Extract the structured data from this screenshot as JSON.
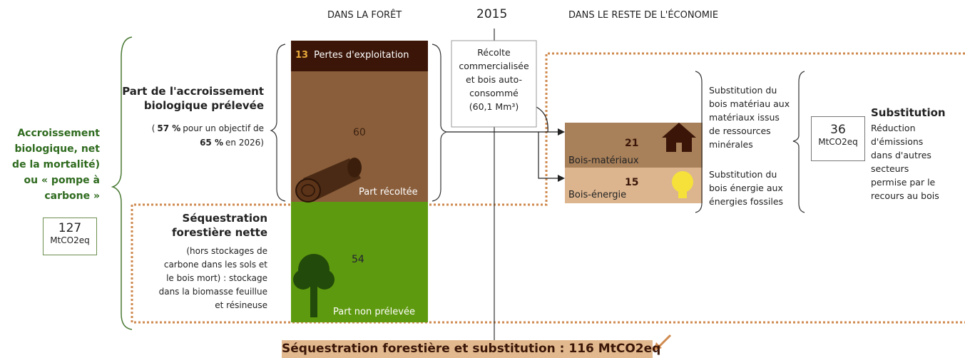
{
  "header": {
    "forest": "DANS LA FORÊT",
    "year": "2015",
    "economy": "DANS LE RESTE DE L'ÉCONOMIE"
  },
  "carbon_pump": {
    "label": [
      "Accroissement",
      "biologique, net",
      "de la mortalité)",
      "ou « pompe à",
      "carbone »"
    ],
    "value": "127",
    "unit": "MtCO2eq"
  },
  "harvested_share": {
    "title": [
      "Part de l'accroissement",
      "biologique prélevée"
    ],
    "note": [
      [
        "(",
        "57 %",
        "pour un objectif de"
      ],
      [
        "65 %",
        "en 2026)"
      ]
    ]
  },
  "column": {
    "losses": {
      "value": "13",
      "label": "Pertes d'exploitation"
    },
    "harvested": {
      "value": "60",
      "label": "Part récoltée"
    },
    "unharvested": {
      "value": "54",
      "label": "Part non prélevée"
    }
  },
  "sequestration": {
    "title": [
      "Séquestration",
      "forestière nette"
    ],
    "note": [
      "(hors stockages de",
      "carbone dans les sols et",
      "le bois mort) : stockage",
      "dans la biomasse feuillue",
      "et résineuse"
    ]
  },
  "harvest_box": [
    "Récolte",
    "commercialisée",
    "et bois auto-",
    "consommé",
    "(60,1 Mm³)"
  ],
  "uses": {
    "materials": {
      "value": "21",
      "label": "Bois-matériaux"
    },
    "energy": {
      "value": "15",
      "label": "Bois-énergie"
    }
  },
  "substitution_notes": {
    "materials": [
      "Substitution du",
      "bois matériau aux",
      "matériaux issus",
      "de ressources",
      "minérales"
    ],
    "energy": [
      "Substitution du",
      "bois énergie aux",
      "énergies fossiles"
    ]
  },
  "substitution": {
    "value": "36",
    "unit": "MtCO2eq",
    "title": "Substitution",
    "note": [
      "Réduction",
      "d'émissions",
      "dans d'autres",
      "secteurs",
      "permise par le",
      "recours au bois"
    ]
  },
  "total": "Séquestration forestière et substitution : 116 MtCO2eq"
}
